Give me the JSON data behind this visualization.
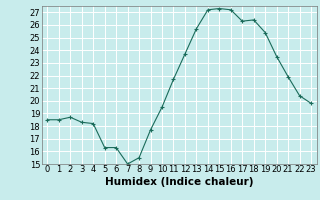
{
  "x": [
    0,
    1,
    2,
    3,
    4,
    5,
    6,
    7,
    8,
    9,
    10,
    11,
    12,
    13,
    14,
    15,
    16,
    17,
    18,
    19,
    20,
    21,
    22,
    23
  ],
  "y": [
    18.5,
    18.5,
    18.7,
    18.3,
    18.2,
    16.3,
    16.3,
    15.0,
    15.5,
    17.7,
    19.5,
    21.7,
    23.7,
    25.7,
    27.2,
    27.3,
    27.2,
    26.3,
    26.4,
    25.4,
    23.5,
    21.9,
    20.4,
    19.8
  ],
  "xlim": [
    -0.5,
    23.5
  ],
  "ylim": [
    15,
    27.5
  ],
  "yticks": [
    15,
    16,
    17,
    18,
    19,
    20,
    21,
    22,
    23,
    24,
    25,
    26,
    27
  ],
  "xticks": [
    0,
    1,
    2,
    3,
    4,
    5,
    6,
    7,
    8,
    9,
    10,
    11,
    12,
    13,
    14,
    15,
    16,
    17,
    18,
    19,
    20,
    21,
    22,
    23
  ],
  "xlabel": "Humidex (Indice chaleur)",
  "line_color": "#1a6b5a",
  "marker": "+",
  "bg_color": "#c8ecec",
  "grid_color": "#ffffff",
  "tick_fontsize": 6,
  "xlabel_fontsize": 7.5
}
